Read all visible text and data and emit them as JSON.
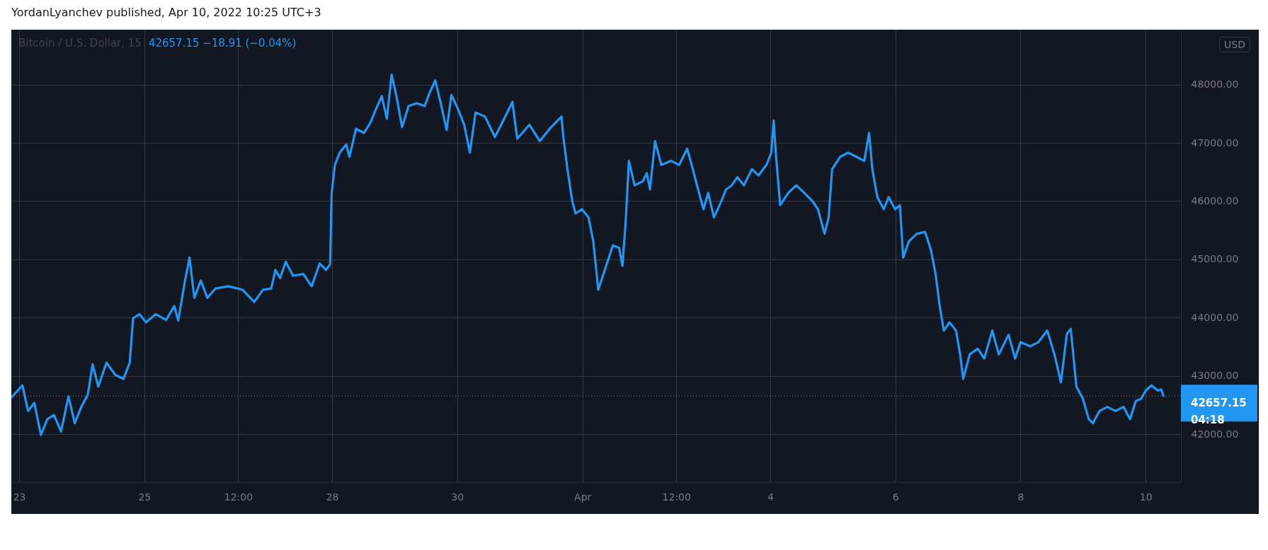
{
  "chart_data": {
    "type": "line",
    "title": "YordanLyanchev published, Apr 10, 2022 10:25 UTC+3",
    "subtitle": "Bitcoin / U.S. Dollar, 15",
    "ylabel": "USD",
    "annotations": [
      "42657.15  −18.91 (−0.04%)"
    ],
    "x": [
      "2022-03-22T21:10",
      "2022-03-23T01:15",
      "2022-03-23T03:25",
      "2022-03-23T05:50",
      "2022-03-23T08:20",
      "2022-03-23T10:50",
      "2022-03-23T13:20",
      "2022-03-23T16:05",
      "2022-03-23T18:55",
      "2022-03-23T21:20",
      "2022-03-23T23:50",
      "2022-03-24T02:20",
      "2022-03-24T04:10",
      "2022-03-24T06:20",
      "2022-03-24T09:30",
      "2022-03-24T12:50",
      "2022-03-24T16:00",
      "2022-03-24T18:25",
      "2022-03-24T19:40",
      "2022-03-24T22:10",
      "2022-03-25T00:40",
      "2022-03-25T04:20",
      "2022-03-25T08:20",
      "2022-03-25T11:30",
      "2022-03-25T13:00",
      "2022-03-25T15:30",
      "2022-03-25T17:20",
      "2022-03-25T19:10",
      "2022-03-25T21:40",
      "2022-03-26T00:10",
      "2022-03-26T03:15",
      "2022-03-26T08:10",
      "2022-03-26T13:40",
      "2022-03-26T18:10",
      "2022-03-26T21:30",
      "2022-03-27T00:40",
      "2022-03-27T02:15",
      "2022-03-27T04:05",
      "2022-03-27T06:15",
      "2022-03-27T09:00",
      "2022-03-27T13:00",
      "2022-03-27T16:10",
      "2022-03-27T19:15",
      "2022-03-27T21:40",
      "2022-03-27T23:15",
      "2022-03-27T23:50",
      "2022-03-28T01:05",
      "2022-03-28T02:55",
      "2022-03-28T05:25",
      "2022-03-28T06:40",
      "2022-03-28T09:10",
      "2022-03-28T12:15",
      "2022-03-28T14:45",
      "2022-03-28T16:55",
      "2022-03-28T19:05",
      "2022-03-28T21:00",
      "2022-03-28T22:50",
      "2022-03-29T00:40",
      "2022-03-29T02:50",
      "2022-03-29T05:20",
      "2022-03-29T08:25",
      "2022-03-29T11:30",
      "2022-03-29T13:25",
      "2022-03-29T15:35",
      "2022-03-29T17:40",
      "2022-03-29T19:55",
      "2022-03-29T21:45",
      "2022-03-30T00:10",
      "2022-03-30T02:40",
      "2022-03-30T04:50",
      "2022-03-30T07:00",
      "2022-03-30T10:40",
      "2022-03-30T14:25",
      "2022-03-30T16:50",
      "2022-03-30T21:10",
      "2022-03-30T23:00",
      "2022-03-31T03:40",
      "2022-03-31T07:40",
      "2022-03-31T11:25",
      "2022-03-31T16:00",
      "2022-03-31T16:40",
      "2022-03-31T18:15",
      "2022-03-31T20:05",
      "2022-03-31T21:20",
      "2022-03-31T23:50",
      "2022-04-01T02:20",
      "2022-04-01T04:10",
      "2022-04-01T06:05",
      "2022-04-01T08:35",
      "2022-04-01T11:40",
      "2022-04-01T14:05",
      "2022-04-01T15:20",
      "2022-04-01T16:35",
      "2022-04-01T17:50",
      "2022-04-01T20:00",
      "2022-04-01T23:10",
      "2022-04-02T00:40",
      "2022-04-02T01:55",
      "2022-04-02T03:50",
      "2022-04-02T06:15",
      "2022-04-02T10:00",
      "2022-04-02T13:05",
      "2022-04-02T16:10",
      "2022-04-02T18:20",
      "2022-04-02T19:55",
      "2022-04-02T22:25",
      "2022-04-03T00:15",
      "2022-04-03T02:25",
      "2022-04-03T04:35",
      "2022-04-03T07:05",
      "2022-04-03T09:15",
      "2022-04-03T11:25",
      "2022-04-03T13:55",
      "2022-04-03T17:00",
      "2022-04-03T19:30",
      "2022-04-03T22:35",
      "2022-04-04T00:25",
      "2022-04-04T01:20",
      "2022-04-04T02:15",
      "2022-04-04T03:50",
      "2022-04-04T06:55",
      "2022-04-04T10:00",
      "2022-04-04T13:05",
      "2022-04-04T16:10",
      "2022-04-04T18:20",
      "2022-04-04T20:50",
      "2022-04-04T22:25",
      "2022-04-04T23:45",
      "2022-04-05T02:50",
      "2022-04-05T05:55",
      "2022-04-05T09:00",
      "2022-04-05T12:05",
      "2022-04-05T13:55",
      "2022-04-05T15:10",
      "2022-04-05T17:05",
      "2022-04-05T19:35",
      "2022-04-05T21:25",
      "2022-04-05T23:55",
      "2022-04-06T01:45",
      "2022-04-06T03:00",
      "2022-04-06T05:10",
      "2022-04-06T08:15",
      "2022-04-06T11:25",
      "2022-04-06T13:35",
      "2022-04-06T15:25",
      "2022-04-06T17:00",
      "2022-04-06T18:35",
      "2022-04-06T20:45",
      "2022-04-06T23:15",
      "2022-04-07T00:50",
      "2022-04-07T02:00",
      "2022-04-07T04:30",
      "2022-04-07T07:35",
      "2022-04-07T10:05",
      "2022-04-07T13:10",
      "2022-04-07T15:40",
      "2022-04-07T19:25",
      "2022-04-07T21:55",
      "2022-04-08T00:00",
      "2022-04-08T03:40",
      "2022-04-08T06:50",
      "2022-04-08T10:15",
      "2022-04-08T13:00",
      "2022-04-08T15:30",
      "2022-04-08T17:45",
      "2022-04-08T19:15",
      "2022-04-08T21:25",
      "2022-04-08T23:55",
      "2022-04-09T02:10",
      "2022-04-09T03:45",
      "2022-04-09T06:15",
      "2022-04-09T09:20",
      "2022-04-09T12:25",
      "2022-04-09T15:30",
      "2022-04-09T18:00",
      "2022-04-09T20:10",
      "2022-04-09T22:15",
      "2022-04-10T00:00",
      "2022-04-10T02:10",
      "2022-04-10T04:40",
      "2022-04-10T05:55",
      "2022-04-10T06:50"
    ],
    "series": [
      {
        "color": "#2196f3",
        "values": [
          42640,
          42840,
          42400,
          42540,
          41990,
          42260,
          42330,
          42050,
          42650,
          42190,
          42470,
          42680,
          43200,
          42820,
          43230,
          43020,
          42950,
          43230,
          43990,
          44060,
          43920,
          44060,
          43960,
          44200,
          43950,
          44610,
          45030,
          44340,
          44640,
          44340,
          44500,
          44540,
          44480,
          44270,
          44480,
          44500,
          44820,
          44680,
          44960,
          44720,
          44750,
          44540,
          44930,
          44820,
          44920,
          46140,
          46620,
          46830,
          46970,
          46760,
          47240,
          47170,
          47350,
          47590,
          47800,
          47410,
          48170,
          47800,
          47270,
          47630,
          47680,
          47630,
          47860,
          48070,
          47680,
          47220,
          47820,
          47590,
          47310,
          46830,
          47520,
          47450,
          47100,
          47310,
          47700,
          47070,
          47310,
          47030,
          47240,
          47450,
          47100,
          46550,
          46000,
          45790,
          45860,
          45720,
          45310,
          44480,
          44820,
          45240,
          45200,
          44890,
          45650,
          46690,
          46270,
          46340,
          46480,
          46200,
          47030,
          46620,
          46690,
          46620,
          46900,
          46550,
          46270,
          45860,
          46140,
          45720,
          45930,
          46200,
          46270,
          46410,
          46270,
          46550,
          46440,
          46620,
          46830,
          47380,
          46760,
          45930,
          46140,
          46270,
          46140,
          46000,
          45860,
          45440,
          45720,
          46550,
          46760,
          46830,
          46760,
          46690,
          47170,
          46550,
          46070,
          45860,
          46070,
          45860,
          45930,
          45030,
          45310,
          45440,
          45470,
          45170,
          44750,
          44200,
          43780,
          43920,
          43780,
          43370,
          42950,
          43370,
          43470,
          43300,
          43780,
          43370,
          43710,
          43300,
          43580,
          43510,
          43580,
          43780,
          43370,
          42890,
          43720,
          43810,
          42820,
          42610,
          42260,
          42190,
          42400,
          42470,
          42400,
          42470,
          42260,
          42570,
          42610,
          42750,
          42840,
          42750,
          42770,
          42660
        ]
      }
    ],
    "xlim": [
      "2022-03-22T21:00",
      "2022-04-10T13:30"
    ],
    "xticks": [
      {
        "value": "2022-03-23",
        "label": "23"
      },
      {
        "value": "2022-03-25",
        "label": "25"
      },
      {
        "value": "2022-03-26T12:00",
        "label": "12:00"
      },
      {
        "value": "2022-03-28",
        "label": "28"
      },
      {
        "value": "2022-03-30",
        "label": "30"
      },
      {
        "value": "2022-04-01",
        "label": "Apr"
      },
      {
        "value": "2022-04-02T12:00",
        "label": "12:00"
      },
      {
        "value": "2022-04-04",
        "label": "4"
      },
      {
        "value": "2022-04-06",
        "label": "6"
      },
      {
        "value": "2022-04-08",
        "label": "8"
      },
      {
        "value": "2022-04-10",
        "label": "10"
      }
    ],
    "ylim": [
      41180,
      48940
    ],
    "yticks": [
      {
        "value": 42000,
        "label": "42000.00"
      },
      {
        "value": 43000,
        "label": "43000.00"
      },
      {
        "value": 44000,
        "label": "44000.00"
      },
      {
        "value": 45000,
        "label": "45000.00"
      },
      {
        "value": 46000,
        "label": "46000.00"
      },
      {
        "value": 47000,
        "label": "47000.00"
      },
      {
        "value": 48000,
        "label": "48000.00"
      }
    ],
    "grid": true,
    "ref_lines": [
      {
        "axis": "y",
        "value": 42657.15,
        "label": "42657.15\n04:18",
        "color": "#2196f3",
        "line_style": "dotted"
      }
    ]
  }
}
